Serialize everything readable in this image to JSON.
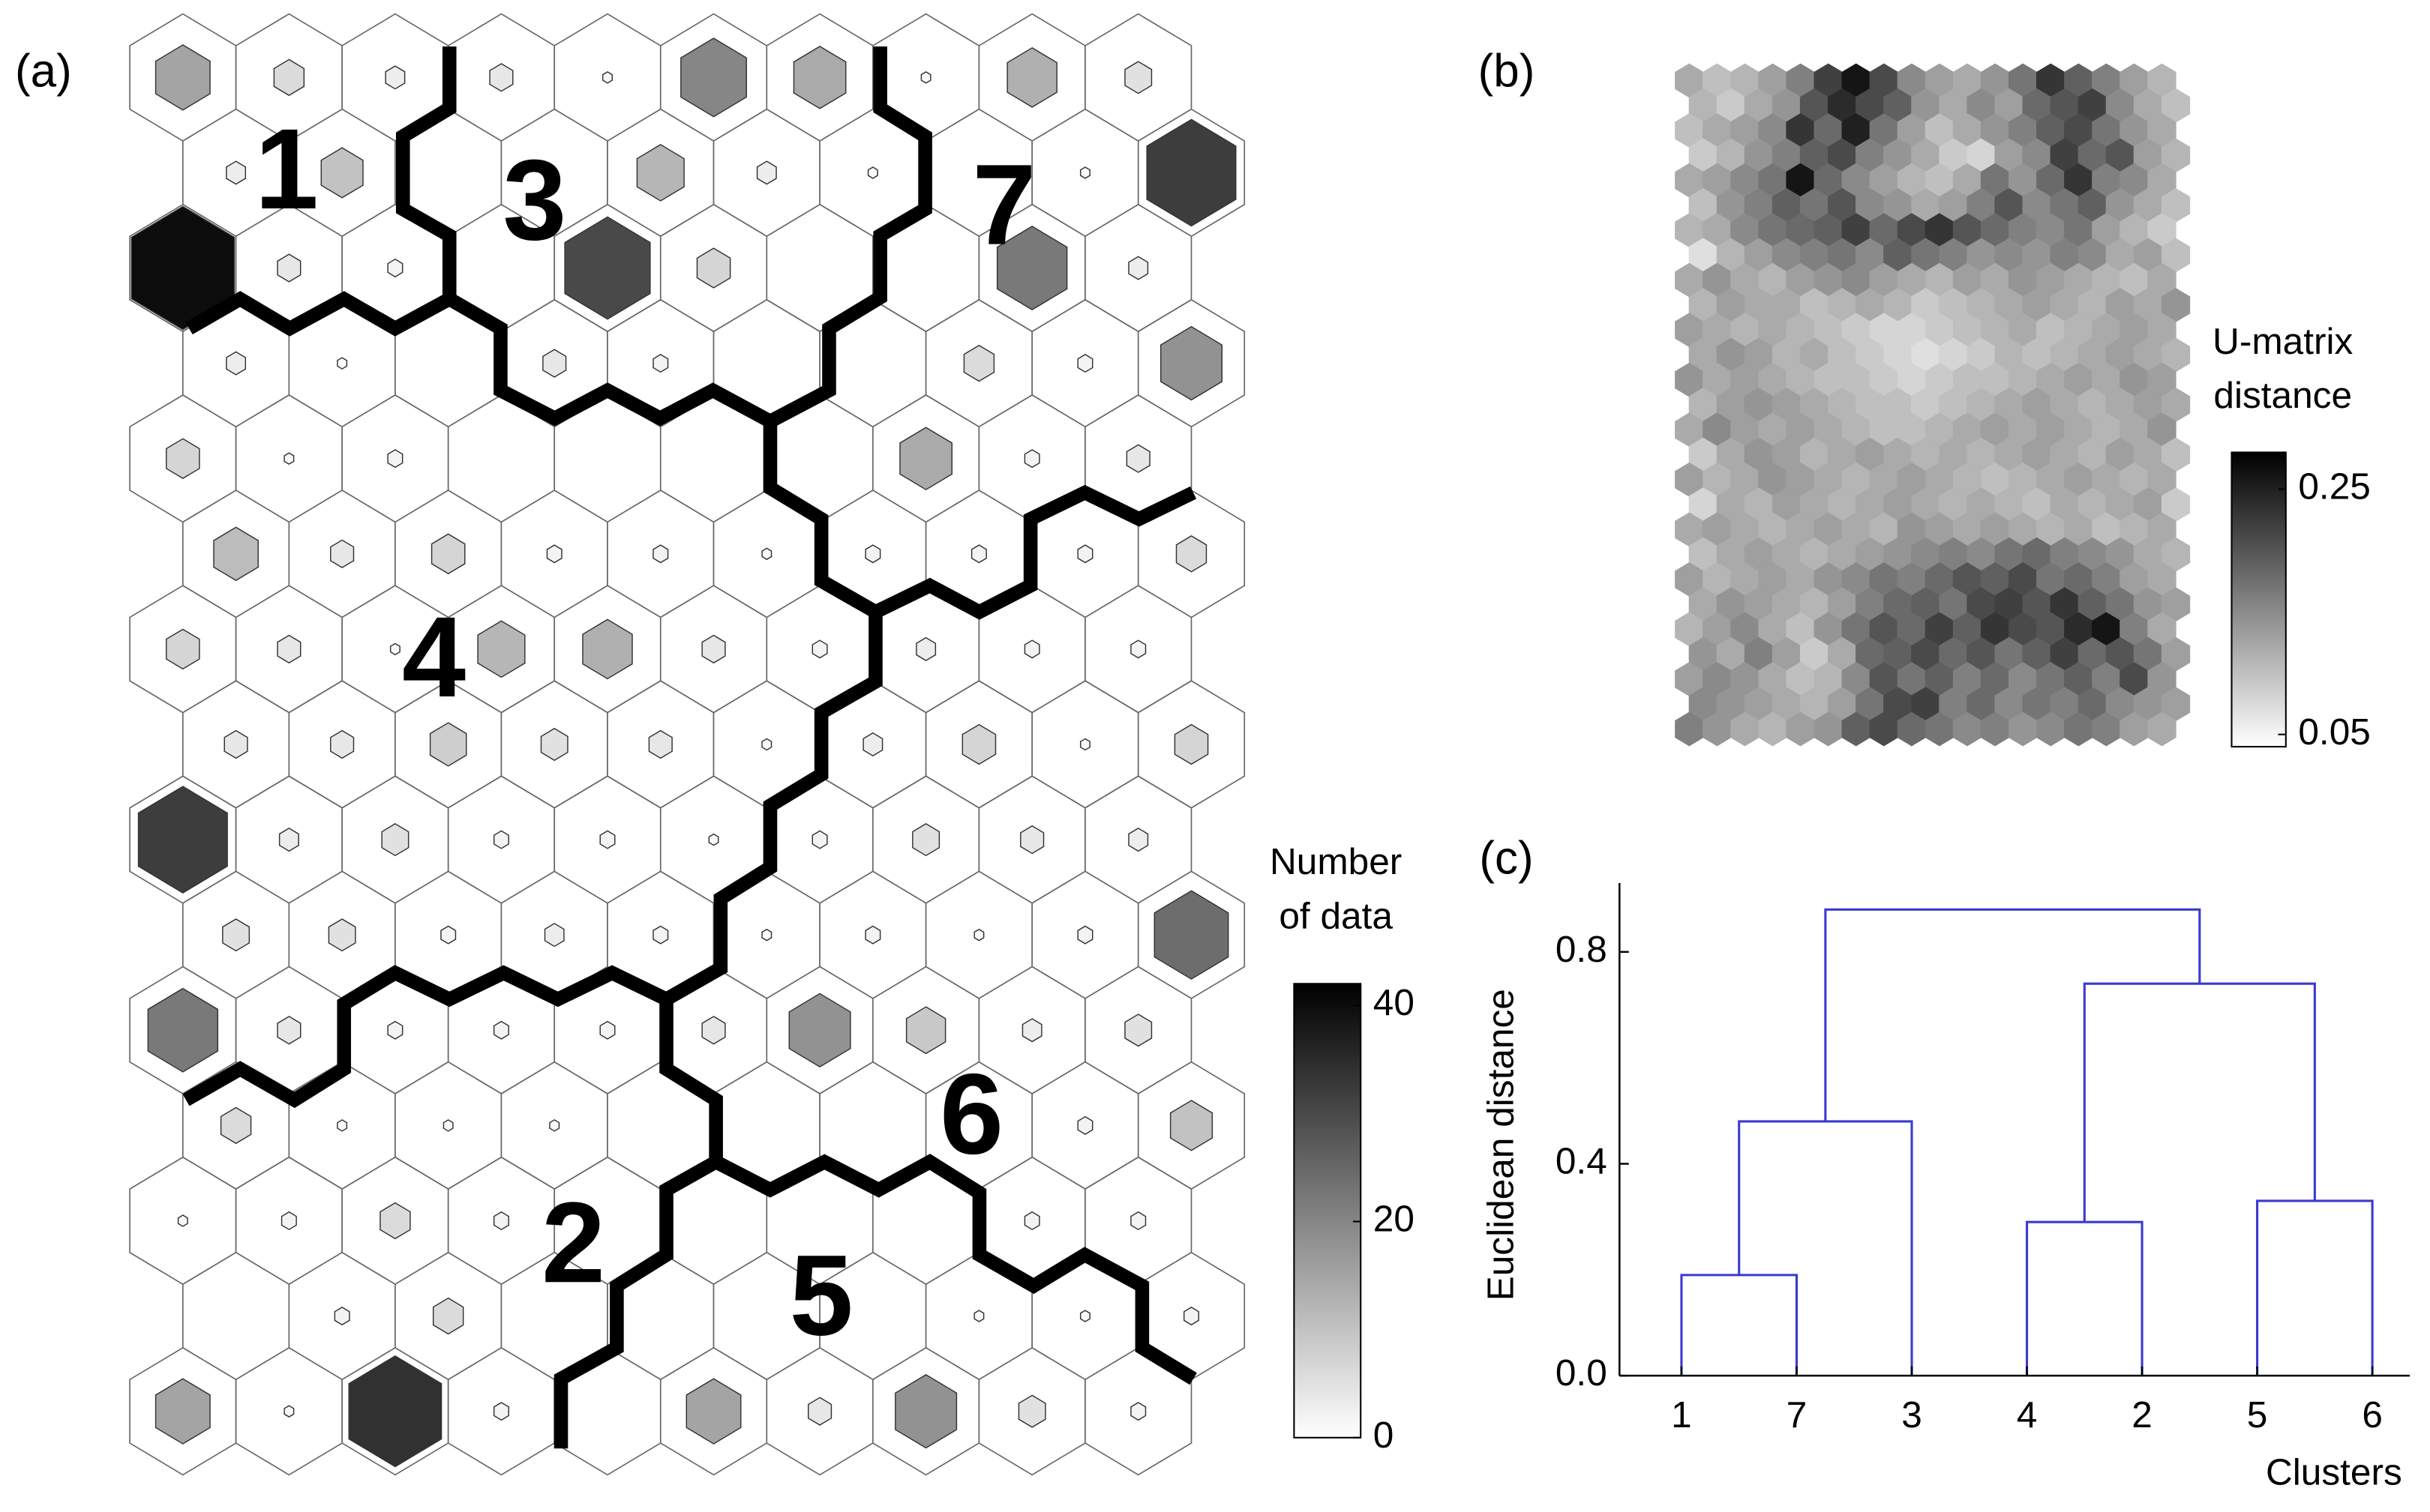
{
  "chart_data": [
    {
      "type": "hitmap",
      "panel_label": "(a)",
      "values": [
        [
          15,
          6,
          3,
          4,
          1,
          20,
          14,
          1,
          13,
          5
        ],
        [
          3,
          10,
          0,
          0,
          12,
          3,
          1,
          0,
          1,
          32
        ],
        [
          40,
          4,
          2,
          0,
          30,
          7,
          0,
          0,
          22,
          3
        ],
        [
          3,
          1,
          0,
          4,
          2,
          0,
          0,
          6,
          2,
          18
        ],
        [
          7,
          1,
          2,
          0,
          0,
          0,
          0,
          14,
          2,
          4
        ],
        [
          11,
          4,
          7,
          2,
          2,
          1,
          2,
          2,
          2,
          6
        ],
        [
          7,
          4,
          1,
          12,
          13,
          4,
          2,
          3,
          2,
          2
        ],
        [
          4,
          4,
          8,
          5,
          4,
          1,
          3,
          7,
          1,
          7
        ],
        [
          32,
          3,
          5,
          2,
          2,
          1,
          2,
          5,
          4,
          3
        ],
        [
          5,
          5,
          2,
          3,
          2,
          1,
          2,
          1,
          2,
          24
        ],
        [
          22,
          4,
          2,
          2,
          2,
          4,
          18,
          9,
          3,
          5
        ],
        [
          6,
          1,
          1,
          1,
          0,
          0,
          0,
          0,
          2,
          10
        ],
        [
          1,
          2,
          6,
          2,
          0,
          0,
          0,
          0,
          2,
          2
        ],
        [
          0,
          2,
          6,
          0,
          0,
          0,
          0,
          1,
          1,
          2
        ],
        [
          15,
          1,
          34,
          2,
          0,
          15,
          4,
          18,
          5,
          2
        ]
      ],
      "cluster_labels": [
        "1",
        "3",
        "7",
        "4",
        "2",
        "5",
        "6"
      ],
      "colorbar_label": [
        "Number",
        "of data"
      ],
      "clim": [
        0,
        42
      ],
      "cticks": [
        0,
        20,
        40
      ],
      "cmap": "gray_r"
    },
    {
      "type": "umatrix",
      "panel_label": "(b)",
      "values": [
        [
          0.12,
          0.1,
          0.11,
          0.13,
          0.16,
          0.22,
          0.26,
          0.21,
          0.15,
          0.13,
          0.12,
          0.14,
          0.17,
          0.23,
          0.19,
          0.16,
          0.13,
          0.11
        ],
        [
          0.11,
          0.09,
          0.12,
          0.14,
          0.2,
          0.24,
          0.21,
          0.19,
          0.14,
          0.12,
          0.15,
          0.13,
          0.18,
          0.2,
          0.22,
          0.15,
          0.12,
          0.1
        ],
        [
          0.1,
          0.12,
          0.13,
          0.15,
          0.23,
          0.18,
          0.25,
          0.17,
          0.13,
          0.1,
          0.12,
          0.14,
          0.16,
          0.19,
          0.21,
          0.17,
          0.14,
          0.12
        ],
        [
          0.09,
          0.11,
          0.14,
          0.16,
          0.19,
          0.21,
          0.16,
          0.14,
          0.12,
          0.09,
          0.08,
          0.13,
          0.15,
          0.22,
          0.18,
          0.2,
          0.13,
          0.11
        ],
        [
          0.12,
          0.13,
          0.15,
          0.17,
          0.26,
          0.18,
          0.15,
          0.13,
          0.11,
          0.1,
          0.12,
          0.17,
          0.14,
          0.18,
          0.23,
          0.16,
          0.15,
          0.12
        ],
        [
          0.1,
          0.14,
          0.16,
          0.19,
          0.17,
          0.2,
          0.15,
          0.14,
          0.12,
          0.13,
          0.16,
          0.2,
          0.15,
          0.17,
          0.19,
          0.14,
          0.12,
          0.1
        ],
        [
          0.11,
          0.12,
          0.15,
          0.17,
          0.18,
          0.19,
          0.22,
          0.18,
          0.21,
          0.23,
          0.2,
          0.18,
          0.16,
          0.15,
          0.17,
          0.13,
          0.11,
          0.09
        ],
        [
          0.07,
          0.11,
          0.13,
          0.15,
          0.16,
          0.17,
          0.15,
          0.19,
          0.17,
          0.16,
          0.14,
          0.15,
          0.14,
          0.16,
          0.15,
          0.12,
          0.13,
          0.1
        ],
        [
          0.12,
          0.14,
          0.12,
          0.11,
          0.13,
          0.14,
          0.15,
          0.13,
          0.12,
          0.11,
          0.13,
          0.12,
          0.14,
          0.13,
          0.12,
          0.11,
          0.1,
          0.12
        ],
        [
          0.11,
          0.13,
          0.12,
          0.12,
          0.1,
          0.11,
          0.12,
          0.11,
          0.09,
          0.1,
          0.11,
          0.12,
          0.13,
          0.12,
          0.11,
          0.13,
          0.12,
          0.14
        ],
        [
          0.13,
          0.12,
          0.11,
          0.12,
          0.11,
          0.1,
          0.09,
          0.08,
          0.08,
          0.09,
          0.1,
          0.11,
          0.12,
          0.1,
          0.11,
          0.12,
          0.13,
          0.12
        ],
        [
          0.12,
          0.14,
          0.13,
          0.11,
          0.12,
          0.1,
          0.09,
          0.08,
          0.07,
          0.08,
          0.09,
          0.11,
          0.1,
          0.11,
          0.12,
          0.13,
          0.12,
          0.11
        ],
        [
          0.14,
          0.12,
          0.13,
          0.12,
          0.11,
          0.1,
          0.1,
          0.09,
          0.08,
          0.09,
          0.1,
          0.1,
          0.11,
          0.12,
          0.13,
          0.12,
          0.14,
          0.13
        ],
        [
          0.11,
          0.13,
          0.14,
          0.13,
          0.12,
          0.11,
          0.1,
          0.1,
          0.09,
          0.1,
          0.11,
          0.12,
          0.13,
          0.12,
          0.11,
          0.12,
          0.13,
          0.12
        ],
        [
          0.12,
          0.15,
          0.13,
          0.12,
          0.13,
          0.12,
          0.11,
          0.1,
          0.1,
          0.11,
          0.12,
          0.13,
          0.12,
          0.13,
          0.12,
          0.11,
          0.12,
          0.14
        ],
        [
          0.09,
          0.12,
          0.14,
          0.13,
          0.11,
          0.12,
          0.13,
          0.12,
          0.11,
          0.12,
          0.11,
          0.12,
          0.13,
          0.12,
          0.11,
          0.13,
          0.12,
          0.1
        ],
        [
          0.13,
          0.11,
          0.12,
          0.14,
          0.13,
          0.12,
          0.11,
          0.12,
          0.13,
          0.12,
          0.11,
          0.1,
          0.11,
          0.12,
          0.13,
          0.12,
          0.11,
          0.12
        ],
        [
          0.08,
          0.12,
          0.11,
          0.13,
          0.12,
          0.11,
          0.12,
          0.13,
          0.12,
          0.11,
          0.12,
          0.11,
          0.1,
          0.12,
          0.11,
          0.12,
          0.13,
          0.09
        ],
        [
          0.12,
          0.13,
          0.12,
          0.11,
          0.12,
          0.13,
          0.12,
          0.11,
          0.14,
          0.13,
          0.12,
          0.13,
          0.12,
          0.11,
          0.12,
          0.1,
          0.11,
          0.12
        ],
        [
          0.1,
          0.12,
          0.13,
          0.12,
          0.11,
          0.12,
          0.13,
          0.14,
          0.15,
          0.16,
          0.15,
          0.17,
          0.18,
          0.16,
          0.15,
          0.14,
          0.12,
          0.11
        ],
        [
          0.13,
          0.11,
          0.12,
          0.13,
          0.12,
          0.14,
          0.15,
          0.17,
          0.16,
          0.18,
          0.2,
          0.19,
          0.21,
          0.17,
          0.18,
          0.16,
          0.13,
          0.12
        ],
        [
          0.12,
          0.14,
          0.13,
          0.12,
          0.11,
          0.13,
          0.16,
          0.18,
          0.19,
          0.17,
          0.21,
          0.22,
          0.2,
          0.23,
          0.19,
          0.17,
          0.14,
          0.13
        ],
        [
          0.11,
          0.13,
          0.15,
          0.12,
          0.1,
          0.14,
          0.17,
          0.2,
          0.18,
          0.22,
          0.19,
          0.23,
          0.21,
          0.2,
          0.24,
          0.26,
          0.16,
          0.12
        ],
        [
          0.14,
          0.12,
          0.16,
          0.13,
          0.09,
          0.12,
          0.18,
          0.19,
          0.21,
          0.18,
          0.2,
          0.17,
          0.19,
          0.22,
          0.18,
          0.2,
          0.17,
          0.13
        ],
        [
          0.13,
          0.15,
          0.14,
          0.12,
          0.1,
          0.11,
          0.15,
          0.2,
          0.17,
          0.19,
          0.16,
          0.18,
          0.15,
          0.17,
          0.19,
          0.16,
          0.21,
          0.14
        ],
        [
          0.15,
          0.14,
          0.13,
          0.12,
          0.11,
          0.13,
          0.17,
          0.21,
          0.22,
          0.16,
          0.18,
          0.15,
          0.17,
          0.16,
          0.18,
          0.15,
          0.14,
          0.13
        ],
        [
          0.16,
          0.14,
          0.12,
          0.11,
          0.13,
          0.14,
          0.19,
          0.21,
          0.18,
          0.17,
          0.15,
          0.16,
          0.14,
          0.15,
          0.17,
          0.16,
          0.13,
          0.12
        ]
      ],
      "colorbar_label": [
        "U-matrix",
        "distance"
      ],
      "clim": [
        0.04,
        0.28
      ],
      "cticks": [
        0.05,
        0.25
      ],
      "cmap": "gray_r"
    },
    {
      "type": "dendrogram",
      "panel_label": "(c)",
      "leaves": [
        "1",
        "7",
        "3",
        "4",
        "2",
        "5",
        "6"
      ],
      "links": [
        {
          "children": [
            0,
            1
          ],
          "height": 0.19
        },
        {
          "children": [
            7,
            2
          ],
          "height": 0.48
        },
        {
          "children": [
            3,
            4
          ],
          "height": 0.29
        },
        {
          "children": [
            5,
            6
          ],
          "height": 0.33
        },
        {
          "children": [
            9,
            10
          ],
          "height": 0.74
        },
        {
          "children": [
            8,
            11
          ],
          "height": 0.88
        }
      ],
      "color": "#3a3ad0",
      "ylabel": "Euclidean distance",
      "xlabel": "Clusters",
      "ylim": [
        0,
        0.93
      ],
      "yticks": [
        {
          "value": 0,
          "label": "0.0"
        },
        {
          "value": 0.4,
          "label": "0.4"
        },
        {
          "value": 0.8,
          "label": "0.8"
        }
      ]
    }
  ]
}
